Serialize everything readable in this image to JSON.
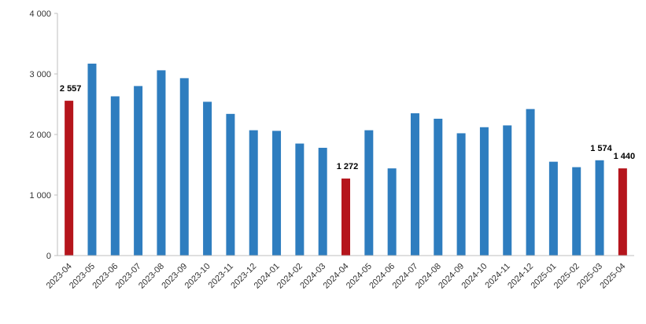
{
  "chart_data": {
    "type": "bar",
    "title": "",
    "xlabel": "",
    "ylabel": "",
    "ylim": [
      0,
      4000
    ],
    "yticks": [
      0,
      1000,
      2000,
      3000,
      4000
    ],
    "ytick_labels": [
      "0",
      "1 000",
      "2 000",
      "3 000",
      "4 000"
    ],
    "grid": false,
    "legend": "none",
    "categories": [
      "2023-04",
      "2023-05",
      "2023-06",
      "2023-07",
      "2023-08",
      "2023-09",
      "2023-10",
      "2023-11",
      "2023-12",
      "2024-01",
      "2024-02",
      "2024-03",
      "2024-04",
      "2024-05",
      "2024-06",
      "2024-07",
      "2024-08",
      "2024-09",
      "2024-10",
      "2024-11",
      "2024-12",
      "2025-01",
      "2025-02",
      "2025-03",
      "2025-04"
    ],
    "values": [
      2557,
      3170,
      2630,
      2800,
      3060,
      2930,
      2540,
      2340,
      2070,
      2060,
      1850,
      1780,
      1272,
      2070,
      1440,
      2350,
      2260,
      2020,
      2120,
      2150,
      2420,
      1550,
      1460,
      1574,
      1440
    ],
    "highlight_indices": [
      0,
      12,
      24
    ],
    "data_labels": [
      {
        "index": 0,
        "text": "2 557"
      },
      {
        "index": 12,
        "text": "1 272"
      },
      {
        "index": 23,
        "text": "1 574"
      },
      {
        "index": 24,
        "text": "1 440"
      }
    ],
    "colors": {
      "default": "#2e7dbf",
      "highlight": "#b5151c"
    }
  }
}
